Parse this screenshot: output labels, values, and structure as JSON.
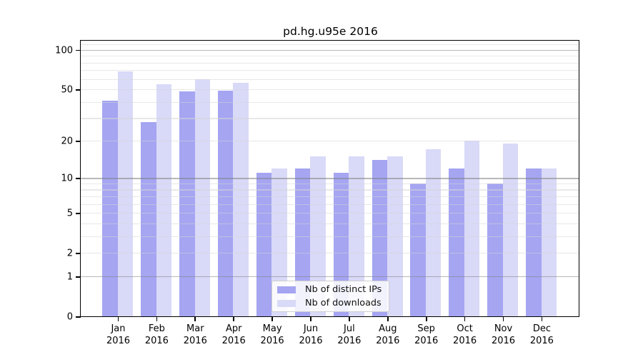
{
  "chart_data": {
    "type": "bar",
    "title": "pd.hg.u95e 2016",
    "categories": [
      "Jan",
      "Feb",
      "Mar",
      "Apr",
      "May",
      "Jun",
      "Jul",
      "Aug",
      "Sep",
      "Oct",
      "Nov",
      "Dec"
    ],
    "category_year": "2016",
    "series": [
      {
        "name": "Nb of distinct IPs",
        "color": "#a5a5f2",
        "values": [
          41,
          28,
          48,
          49,
          11,
          12,
          11,
          14,
          9,
          12,
          9,
          12
        ]
      },
      {
        "name": "Nb of downloads",
        "color": "#d9d9f8",
        "values": [
          69,
          55,
          60,
          56,
          12,
          15,
          15,
          15,
          17,
          20,
          19,
          12
        ]
      }
    ],
    "xlabel": "",
    "ylabel": "",
    "y_axis": {
      "scale": "log10(1+x)",
      "tick_values": [
        0,
        1,
        2,
        5,
        10,
        20,
        50,
        100
      ],
      "tick_labels": [
        "0",
        "1",
        "2",
        "5",
        "10",
        "20",
        "50",
        "100"
      ],
      "range": [
        0,
        116
      ]
    },
    "grid": {
      "on": true,
      "minor_values": [
        2,
        3,
        4,
        5,
        6,
        7,
        8,
        9,
        20,
        30,
        40,
        50,
        60,
        70,
        80,
        90,
        110
      ],
      "major_values": [
        1,
        10,
        100
      ]
    },
    "legend_position": "lower center"
  }
}
